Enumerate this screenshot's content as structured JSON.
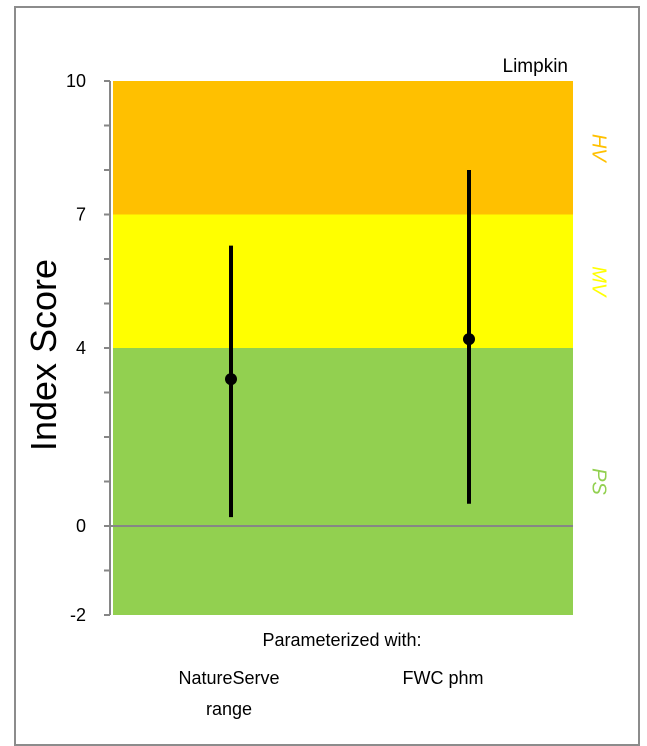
{
  "chart_data": {
    "type": "scatter",
    "title": "Limpkin",
    "ylabel": "Index Score",
    "xlabel": "Parameterized with:",
    "ylim": [
      -2,
      10
    ],
    "y_ticks": [
      -2,
      0,
      4,
      7,
      10
    ],
    "categories": [
      {
        "line1": "NatureServe",
        "line2": "range"
      },
      {
        "line1": "FWC phm",
        "line2": ""
      }
    ],
    "points": [
      {
        "category": "NatureServe range",
        "value": 3.3,
        "low": 0.2,
        "high": 6.3
      },
      {
        "category": "FWC phm",
        "value": 4.2,
        "low": 0.5,
        "high": 8.0
      }
    ],
    "zones": [
      {
        "label": "HV",
        "from": 7,
        "to": 10,
        "color": "#FFC000",
        "label_color": "#FFC000"
      },
      {
        "label": "MV",
        "from": 4,
        "to": 7,
        "color": "#FFFF00",
        "label_color": "#FFFF00"
      },
      {
        "label": "PS",
        "from": -2,
        "to": 4,
        "color": "#92D050",
        "label_color": "#92D050"
      }
    ],
    "grid": false
  }
}
